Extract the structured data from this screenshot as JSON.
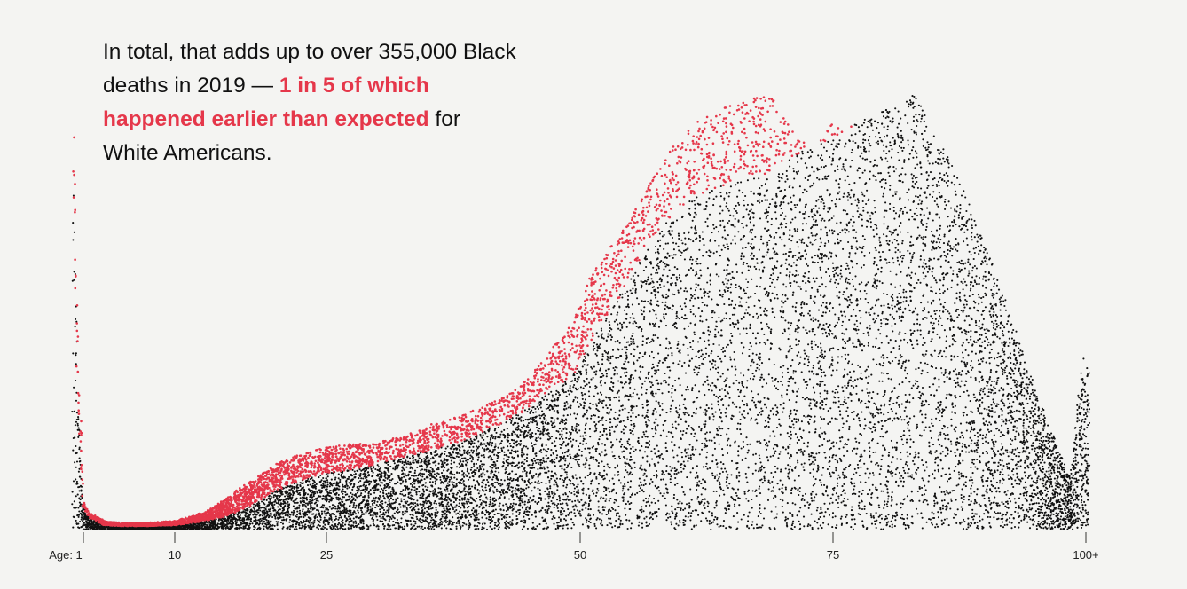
{
  "annotation": {
    "lead": "In total, that adds up to over 355,000 Black deaths in 2019 — ",
    "highlight": "1 in 5 of which happened earlier than expected",
    "tail": " for White Americans."
  },
  "colors": {
    "background": "#f4f4f2",
    "expected_deaths": "#111111",
    "excess_deaths": "#e5374a",
    "text": "#111111"
  },
  "chart_data": {
    "type": "area",
    "style": "dot-density",
    "title": "",
    "xlabel": "",
    "ylabel": "",
    "x_domain": [
      1,
      100
    ],
    "x_ticks": [
      {
        "value": 1,
        "label": "Age: 1"
      },
      {
        "value": 10,
        "label": "10"
      },
      {
        "value": 25,
        "label": "25"
      },
      {
        "value": 50,
        "label": "50"
      },
      {
        "value": 75,
        "label": "75"
      },
      {
        "value": 100,
        "label": "100+"
      }
    ],
    "y_unit": "relative share of deaths (peak = 1)",
    "series": [
      {
        "color": "black",
        "x": [
          0,
          0.5,
          1,
          1.5,
          3,
          5,
          7,
          10,
          13,
          15,
          18,
          20,
          22,
          25,
          28,
          30,
          33,
          35,
          38,
          40,
          42,
          45,
          47,
          49,
          50,
          51,
          53,
          55,
          57,
          59,
          61,
          63,
          65,
          67,
          69,
          71,
          73,
          75,
          77,
          79,
          81,
          83,
          85,
          87,
          89,
          91,
          93,
          95,
          97,
          98,
          98.5,
          99,
          99.6,
          100
        ],
        "values": [
          0.82,
          0.28,
          0.05,
          0.03,
          0.01,
          0.008,
          0.008,
          0.01,
          0.02,
          0.03,
          0.06,
          0.09,
          0.11,
          0.13,
          0.14,
          0.15,
          0.17,
          0.18,
          0.2,
          0.22,
          0.24,
          0.28,
          0.32,
          0.35,
          0.38,
          0.43,
          0.5,
          0.58,
          0.67,
          0.72,
          0.76,
          0.78,
          0.8,
          0.81,
          0.82,
          0.86,
          0.88,
          0.9,
          0.93,
          0.96,
          0.97,
          1.0,
          0.92,
          0.83,
          0.72,
          0.6,
          0.46,
          0.32,
          0.2,
          0.14,
          0.12,
          0.24,
          0.4,
          0.38
        ]
      },
      {
        "color": "red",
        "x": [
          0,
          0.5,
          1,
          1.5,
          3,
          5,
          7,
          10,
          13,
          15,
          18,
          20,
          22,
          25,
          28,
          30,
          33,
          35,
          38,
          40,
          42,
          45,
          47,
          49,
          50,
          51,
          53,
          55,
          57,
          59,
          61,
          63,
          65,
          67,
          69,
          71,
          73,
          75,
          77,
          79,
          81,
          83
        ],
        "values": [
          1.0,
          0.4,
          0.06,
          0.04,
          0.02,
          0.015,
          0.015,
          0.02,
          0.04,
          0.07,
          0.12,
          0.15,
          0.17,
          0.19,
          0.2,
          0.2,
          0.22,
          0.24,
          0.26,
          0.28,
          0.3,
          0.35,
          0.41,
          0.47,
          0.52,
          0.58,
          0.65,
          0.72,
          0.8,
          0.88,
          0.93,
          0.96,
          0.98,
          1.0,
          0.99,
          0.92,
          0.87,
          0.94,
          0.93,
          0.9,
          0.97,
          1.0
        ]
      }
    ],
    "grid": false,
    "legend": "none"
  }
}
